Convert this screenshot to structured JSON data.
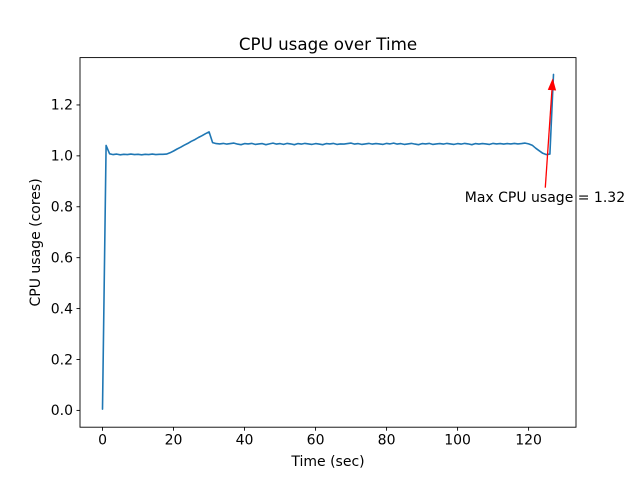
{
  "chart_data": {
    "type": "line",
    "title": "CPU usage over Time",
    "xlabel": "Time (sec)",
    "ylabel": "CPU usage (cores)",
    "grid": false,
    "legend": null,
    "xlim": [
      -6.35,
      133.35
    ],
    "ylim": [
      -0.066,
      1.386
    ],
    "x_ticks": [
      0,
      20,
      40,
      60,
      80,
      100,
      120
    ],
    "x_tick_labels": [
      "0",
      "20",
      "40",
      "60",
      "80",
      "100",
      "120"
    ],
    "y_ticks": [
      0.0,
      0.2,
      0.4,
      0.6,
      0.8,
      1.0,
      1.2
    ],
    "y_tick_labels": [
      "0.0",
      "0.2",
      "0.4",
      "0.6",
      "0.8",
      "1.0",
      "1.2"
    ],
    "max_value": 1.32,
    "series": [
      {
        "name": "CPU usage",
        "color": "#1f77b4",
        "x": [
          0,
          1,
          2,
          3,
          4,
          5,
          6,
          7,
          8,
          9,
          10,
          11,
          12,
          13,
          14,
          15,
          16,
          17,
          18,
          19,
          20,
          21,
          22,
          23,
          24,
          25,
          26,
          27,
          28,
          29,
          30,
          31,
          32,
          33,
          34,
          35,
          36,
          37,
          38,
          39,
          40,
          41,
          42,
          43,
          44,
          45,
          46,
          47,
          48,
          49,
          50,
          51,
          52,
          53,
          54,
          55,
          56,
          57,
          58,
          59,
          60,
          61,
          62,
          63,
          64,
          65,
          66,
          67,
          68,
          69,
          70,
          71,
          72,
          73,
          74,
          75,
          76,
          77,
          78,
          79,
          80,
          81,
          82,
          83,
          84,
          85,
          86,
          87,
          88,
          89,
          90,
          91,
          92,
          93,
          94,
          95,
          96,
          97,
          98,
          99,
          100,
          101,
          102,
          103,
          104,
          105,
          106,
          107,
          108,
          109,
          110,
          111,
          112,
          113,
          114,
          115,
          116,
          117,
          118,
          119,
          120,
          121,
          122,
          123,
          124,
          125,
          126,
          127
        ],
        "values": [
          0.005,
          1.041,
          1.008,
          1.005,
          1.007,
          1.004,
          1.006,
          1.005,
          1.007,
          1.005,
          1.006,
          1.004,
          1.006,
          1.005,
          1.007,
          1.005,
          1.006,
          1.006,
          1.007,
          1.012,
          1.019,
          1.027,
          1.034,
          1.042,
          1.049,
          1.057,
          1.064,
          1.072,
          1.079,
          1.087,
          1.094,
          1.052,
          1.048,
          1.047,
          1.049,
          1.046,
          1.048,
          1.05,
          1.046,
          1.044,
          1.048,
          1.047,
          1.049,
          1.045,
          1.047,
          1.048,
          1.044,
          1.047,
          1.05,
          1.046,
          1.048,
          1.045,
          1.049,
          1.047,
          1.044,
          1.048,
          1.046,
          1.049,
          1.047,
          1.045,
          1.048,
          1.046,
          1.044,
          1.048,
          1.047,
          1.049,
          1.045,
          1.047,
          1.046,
          1.048,
          1.05,
          1.046,
          1.048,
          1.045,
          1.047,
          1.049,
          1.046,
          1.048,
          1.047,
          1.045,
          1.049,
          1.047,
          1.05,
          1.046,
          1.048,
          1.045,
          1.047,
          1.049,
          1.046,
          1.044,
          1.048,
          1.047,
          1.049,
          1.045,
          1.047,
          1.048,
          1.046,
          1.049,
          1.047,
          1.045,
          1.048,
          1.046,
          1.049,
          1.047,
          1.044,
          1.048,
          1.046,
          1.048,
          1.047,
          1.045,
          1.049,
          1.047,
          1.048,
          1.046,
          1.048,
          1.047,
          1.049,
          1.047,
          1.048,
          1.05,
          1.047,
          1.042,
          1.03,
          1.02,
          1.01,
          1.005,
          1.007,
          1.32
        ]
      }
    ],
    "annotation": {
      "text": "Max CPU usage = 1.32",
      "color": "#ff0000",
      "text_center_xy": [
        124.6,
        0.838
      ],
      "arrow_tail_xy": [
        124.7,
        0.875
      ],
      "arrow_tip_xy": [
        126.8,
        1.305
      ]
    }
  }
}
